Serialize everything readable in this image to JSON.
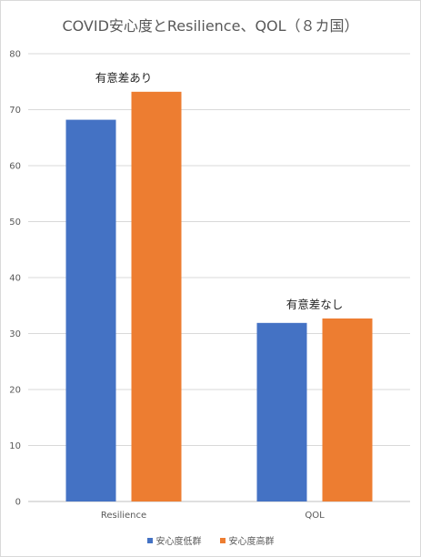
{
  "chart_data": {
    "type": "bar",
    "title": "COVID安心度とResilience、QOL（８カ国）",
    "categories": [
      "Resilience",
      "QOL"
    ],
    "series": [
      {
        "name": "安心度低群",
        "values": [
          68.2,
          31.9
        ],
        "color": "#4472C4"
      },
      {
        "name": "安心度高群",
        "values": [
          73.2,
          32.7
        ],
        "color": "#ED7D31"
      }
    ],
    "ylim": [
      0,
      80
    ],
    "yticks": [
      0,
      10,
      20,
      30,
      40,
      50,
      60,
      70,
      80
    ],
    "grid": true,
    "legend": "bottom",
    "annotations": [
      "有意差あり",
      "有意差なし"
    ]
  }
}
